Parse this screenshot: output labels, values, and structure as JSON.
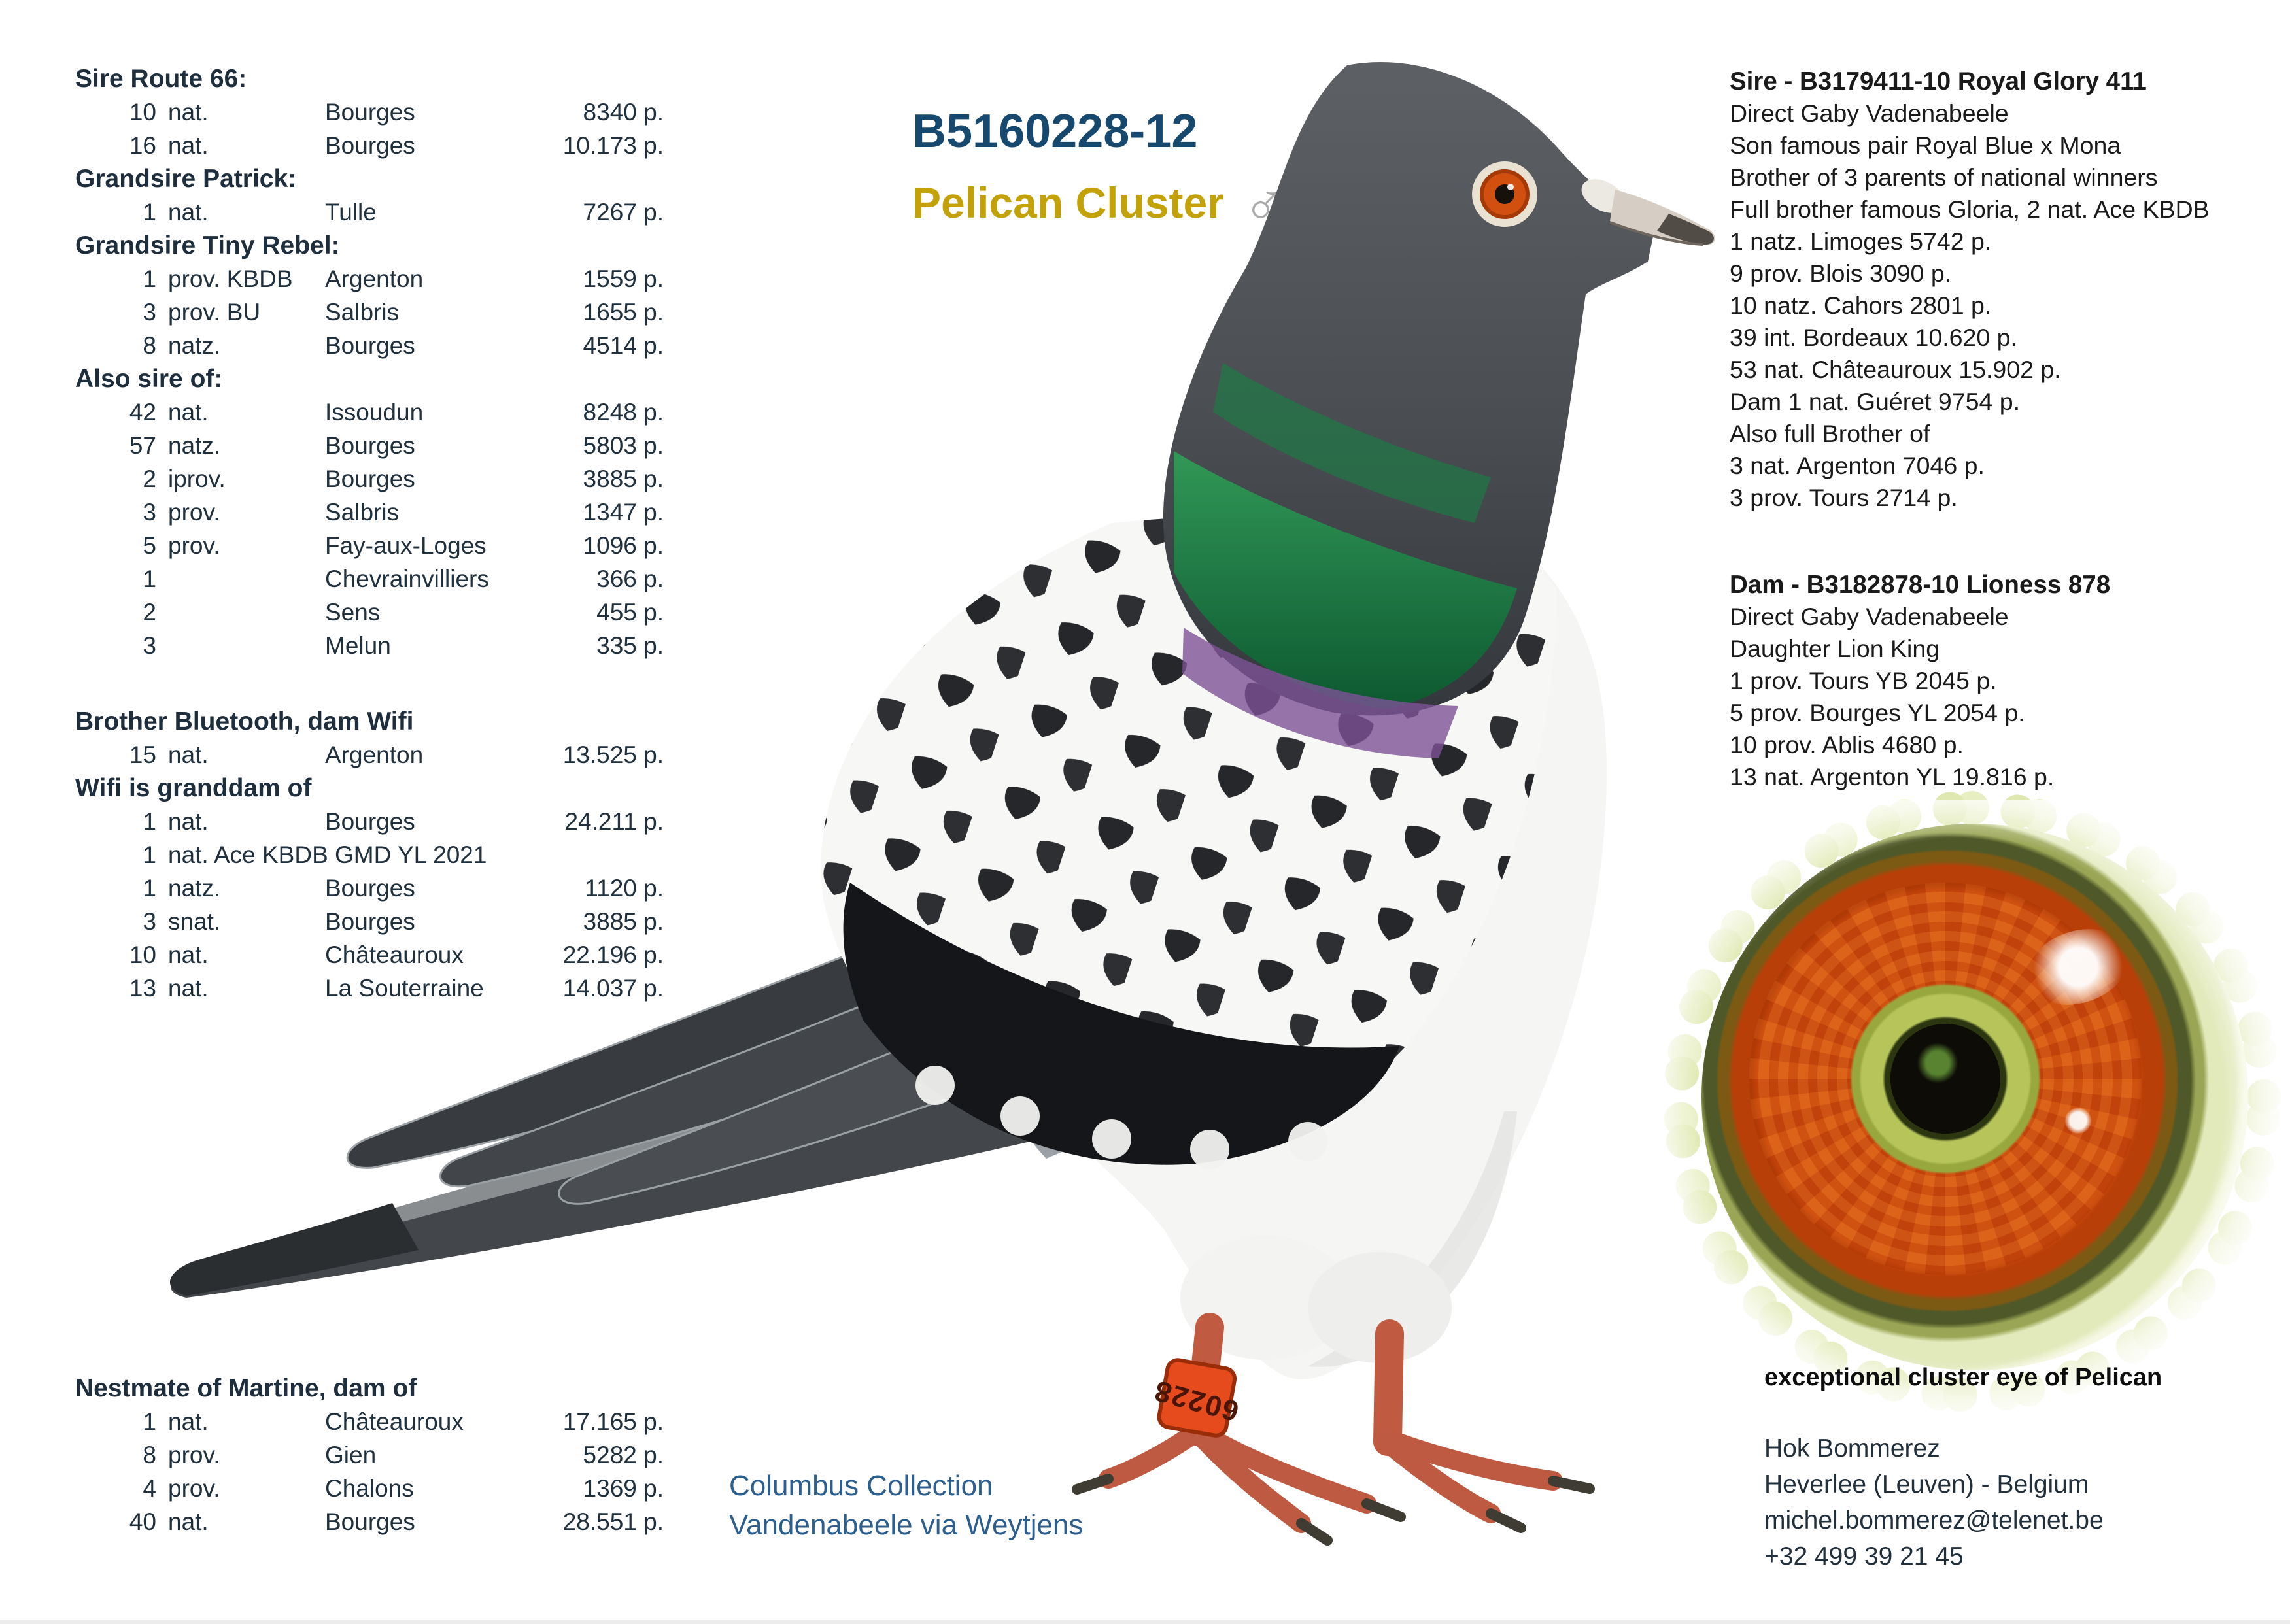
{
  "title": {
    "ring": "B5160228-12",
    "name": "Pelican Cluster",
    "sex_symbol": "♂",
    "ring_color": "#17496f",
    "name_color": "#c2a207"
  },
  "left": {
    "sections": [
      {
        "header": "Sire Route 66:",
        "rows": [
          [
            "10",
            "nat.",
            "Bourges",
            "8340 p."
          ],
          [
            "16",
            "nat.",
            "Bourges",
            "10.173 p."
          ]
        ]
      },
      {
        "header": "Grandsire Patrick:",
        "rows": [
          [
            "1",
            "nat.",
            "Tulle",
            "7267 p."
          ]
        ]
      },
      {
        "header": "Grandsire Tiny Rebel:",
        "rows": [
          [
            "1",
            "prov. KBDB",
            "Argenton",
            "1559 p."
          ],
          [
            "3",
            "prov. BU",
            "Salbris",
            "1655 p."
          ],
          [
            "8",
            "natz.",
            "Bourges",
            "4514 p."
          ]
        ]
      },
      {
        "header": "Also sire of:",
        "rows": [
          [
            "42",
            "nat.",
            "Issoudun",
            "8248 p."
          ],
          [
            "57",
            "natz.",
            "Bourges",
            "5803 p."
          ],
          [
            "2",
            "iprov.",
            "Bourges",
            "3885 p."
          ],
          [
            "3",
            "prov.",
            "Salbris",
            "1347 p."
          ],
          [
            "5",
            "prov.",
            "Fay-aux-Loges",
            "1096 p."
          ],
          [
            "1",
            "",
            "Chevrainvilliers",
            "366 p."
          ],
          [
            "2",
            "",
            "Sens",
            "455 p."
          ],
          [
            "3",
            "",
            "Melun",
            "335 p."
          ]
        ]
      }
    ],
    "sections2": [
      {
        "header": "Brother Bluetooth, dam Wifi",
        "rows": [
          [
            "15",
            "nat.",
            "Argenton",
            "13.525 p."
          ]
        ]
      },
      {
        "header": "Wifi is granddam of",
        "rows": [
          [
            "1",
            "nat.",
            "Bourges",
            "24.211 p."
          ],
          [
            "1",
            "nat. Ace KBDB GMD YL 2021",
            "",
            ""
          ],
          [
            "1",
            "natz.",
            "Bourges",
            "1120 p."
          ],
          [
            "3",
            "snat.",
            "Bourges",
            "3885 p."
          ],
          [
            "10",
            "nat.",
            "Châteauroux",
            "22.196 p."
          ],
          [
            "13",
            "nat.",
            "La Souterraine",
            "14.037 p."
          ]
        ]
      }
    ],
    "sections3": [
      {
        "header": "Nestmate of Martine, dam of",
        "rows": [
          [
            "1",
            "nat.",
            "Châteauroux",
            "17.165 p."
          ],
          [
            "8",
            "prov.",
            "Gien",
            "5282 p."
          ],
          [
            "4",
            "prov.",
            "Chalons",
            "1369 p."
          ],
          [
            "40",
            "nat.",
            "Bourges",
            "28.551 p."
          ]
        ]
      }
    ]
  },
  "right": {
    "sire": {
      "header": "Sire - B3179411-10 Royal Glory 411",
      "lines": [
        "Direct Gaby Vadenabeele",
        "Son famous pair Royal Blue x Mona",
        "Brother of 3 parents of national winners",
        "Full brother famous Gloria, 2 nat. Ace KBDB",
        "1 natz. Limoges 5742 p.",
        "9 prov. Blois 3090 p.",
        "10 natz. Cahors 2801 p.",
        "39 int. Bordeaux 10.620 p.",
        "53 nat. Châteauroux 15.902 p.",
        "Dam 1 nat. Guéret 9754 p.",
        "Also full Brother of",
        "3 nat. Argenton 7046 p.",
        "3 prov. Tours 2714 p."
      ]
    },
    "dam": {
      "header": "Dam - B3182878-10 Lioness 878",
      "lines": [
        "Direct Gaby Vadenabeele",
        "Daughter Lion King",
        "1 prov. Tours YB 2045 p.",
        "5 prov. Bourges YL 2054 p.",
        "10 prov. Ablis 4680 p.",
        "13 nat. Argenton YL 19.816 p."
      ]
    }
  },
  "eye": {
    "caption": "exceptional cluster eye of Pelican"
  },
  "credit": {
    "line1": "Columbus Collection",
    "line2": "Vandenabeele via Weytjens"
  },
  "contact": {
    "lines": [
      "Hok Bommerez",
      "Heverlee (Leuven) - Belgium",
      "michel.bommerez@telenet.be",
      "+32 499 39 21 45"
    ]
  },
  "leg_band_text": "60228",
  "colors": {
    "ring_blue": "#17496f",
    "name_gold": "#c2a207",
    "credit_blue": "#2d5f8e",
    "text_dark": "#20303d",
    "eye_iris_orange": "#d04a0e",
    "eye_inner_green": "#b6c45a",
    "band_red": "#e54b1d"
  }
}
